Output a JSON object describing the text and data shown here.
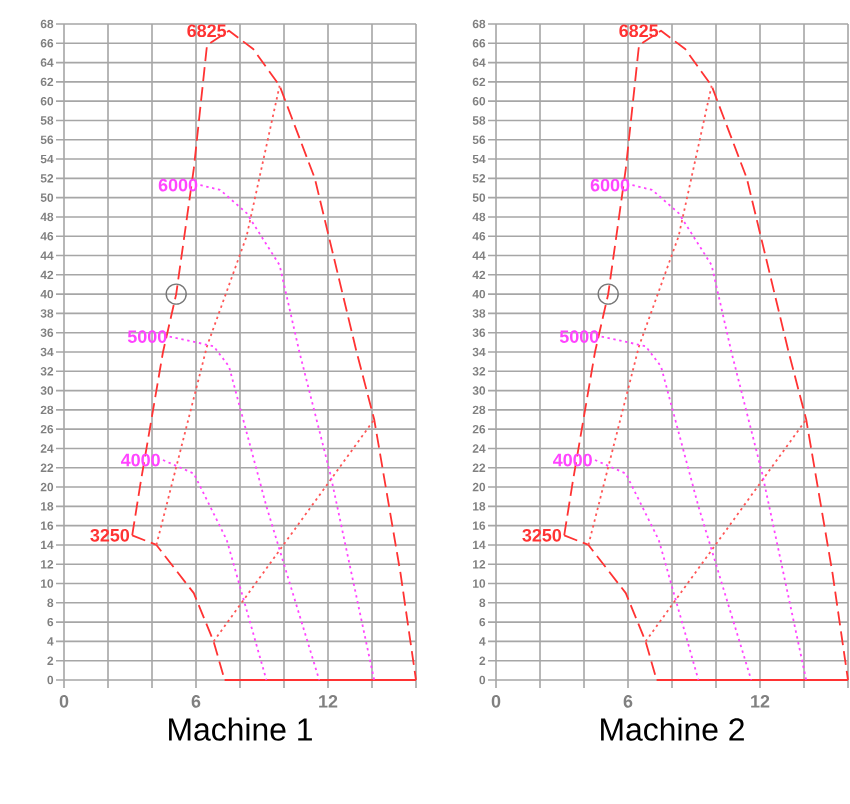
{
  "chart_data": [
    {
      "type": "line",
      "xlabel": "Machine 1",
      "xlim": [
        0,
        16
      ],
      "ylim": [
        0,
        68
      ],
      "xticks": [
        0,
        {
          "value": 2,
          "label": null
        },
        {
          "value": 4,
          "label": null
        },
        6,
        {
          "value": 8,
          "label": null
        },
        {
          "value": 10,
          "label": null
        },
        12,
        {
          "value": 14,
          "label": null
        },
        {
          "value": 16,
          "label": null
        }
      ],
      "yticks": [
        0,
        2,
        4,
        6,
        8,
        10,
        12,
        14,
        16,
        18,
        20,
        22,
        24,
        26,
        28,
        30,
        32,
        34,
        36,
        38,
        40,
        42,
        44,
        46,
        48,
        50,
        52,
        54,
        56,
        58,
        60,
        62,
        64,
        66,
        68
      ],
      "grid": true,
      "series": [
        {
          "name": "6825",
          "color": "#ff3333",
          "line_style": "dashed",
          "x": [
            3.1,
            3.5,
            4.5,
            5.1,
            5.9,
            6.5,
            7.5,
            8.6,
            9.8,
            11.4,
            13.3,
            14.1,
            15.3,
            16
          ],
          "values": [
            15,
            20.7,
            34,
            40,
            53,
            65.8,
            67.3,
            65.4,
            61.6,
            52,
            34,
            27,
            11,
            0
          ]
        },
        {
          "name": "3250",
          "color": "#ff3333",
          "line_style": "dashed",
          "x": [
            3.1,
            4.2,
            5.9,
            6.8,
            7.3
          ],
          "values": [
            15,
            14,
            9,
            4,
            0
          ]
        },
        {
          "color": "#ff3333",
          "line_style": "solid",
          "x": [
            7.3,
            16
          ],
          "values": [
            0,
            0
          ]
        },
        {
          "color": "#ff5555",
          "line_style": "dotted",
          "x": [
            6.8,
            14.1
          ],
          "values": [
            4,
            27
          ]
        },
        {
          "color": "#ff5555",
          "line_style": "dotted",
          "x": [
            4.2,
            6.5,
            8.3,
            9.8
          ],
          "values": [
            14,
            34.6,
            46,
            61.6
          ]
        },
        {
          "name": "6000",
          "color": "#ff44ff",
          "line_style": "dotted",
          "x": [
            6.2,
            7.1,
            8.3,
            9.8,
            10.7,
            12.1,
            14.1
          ],
          "values": [
            51.3,
            50.8,
            48.4,
            43,
            34,
            21.4,
            0
          ]
        },
        {
          "name": "5000",
          "color": "#ff44ff",
          "line_style": "dotted",
          "x": [
            4.8,
            6.8,
            7.5,
            9.2,
            11.6
          ],
          "values": [
            35.6,
            34.6,
            32.5,
            18,
            0
          ]
        },
        {
          "name": "4000",
          "color": "#ff44ff",
          "line_style": "dotted",
          "x": [
            4.5,
            5.9,
            7.4,
            9.2
          ],
          "values": [
            22.8,
            21.4,
            14.5,
            0
          ]
        },
        {
          "type": "scatter",
          "marker": "circle",
          "color": "#777777",
          "x": [
            5.1
          ],
          "values": [
            40
          ]
        }
      ]
    },
    {
      "type": "line",
      "xlabel": "Machine 2",
      "xlim": [
        0,
        16
      ],
      "ylim": [
        0,
        68
      ],
      "xticks": [
        0,
        {
          "value": 2,
          "label": null
        },
        {
          "value": 4,
          "label": null
        },
        6,
        {
          "value": 8,
          "label": null
        },
        {
          "value": 10,
          "label": null
        },
        12,
        {
          "value": 14,
          "label": null
        },
        {
          "value": 16,
          "label": null
        }
      ],
      "yticks": [
        0,
        2,
        4,
        6,
        8,
        10,
        12,
        14,
        16,
        18,
        20,
        22,
        24,
        26,
        28,
        30,
        32,
        34,
        36,
        38,
        40,
        42,
        44,
        46,
        48,
        50,
        52,
        54,
        56,
        58,
        60,
        62,
        64,
        66,
        68
      ],
      "grid": true,
      "series": [
        {
          "name": "6825",
          "color": "#ff3333",
          "line_style": "dashed",
          "x": [
            3.1,
            3.5,
            4.5,
            5.1,
            5.9,
            6.5,
            7.5,
            8.6,
            9.8,
            11.4,
            13.3,
            14.1,
            15.3,
            16
          ],
          "values": [
            15,
            20.7,
            34,
            40,
            53,
            65.8,
            67.3,
            65.4,
            61.6,
            52,
            34,
            27,
            11,
            0
          ]
        },
        {
          "name": "3250",
          "color": "#ff3333",
          "line_style": "dashed",
          "x": [
            3.1,
            4.2,
            5.9,
            6.8,
            7.3
          ],
          "values": [
            15,
            14,
            9,
            4,
            0
          ]
        },
        {
          "color": "#ff3333",
          "line_style": "solid",
          "x": [
            7.3,
            16
          ],
          "values": [
            0,
            0
          ]
        },
        {
          "color": "#ff5555",
          "line_style": "dotted",
          "x": [
            6.8,
            14.1
          ],
          "values": [
            4,
            27
          ]
        },
        {
          "color": "#ff5555",
          "line_style": "dotted",
          "x": [
            4.2,
            6.5,
            8.3,
            9.8
          ],
          "values": [
            14,
            34.6,
            46,
            61.6
          ]
        },
        {
          "name": "6000",
          "color": "#ff44ff",
          "line_style": "dotted",
          "x": [
            6.2,
            7.1,
            8.3,
            9.8,
            10.7,
            12.1,
            14.1
          ],
          "values": [
            51.3,
            50.8,
            48.4,
            43,
            34,
            21.4,
            0
          ]
        },
        {
          "name": "5000",
          "color": "#ff44ff",
          "line_style": "dotted",
          "x": [
            4.8,
            6.8,
            7.5,
            9.2,
            11.6
          ],
          "values": [
            35.6,
            34.6,
            32.5,
            18,
            0
          ]
        },
        {
          "name": "4000",
          "color": "#ff44ff",
          "line_style": "dotted",
          "x": [
            4.5,
            5.9,
            7.4,
            9.2
          ],
          "values": [
            22.8,
            21.4,
            14.5,
            0
          ]
        },
        {
          "type": "scatter",
          "marker": "circle",
          "color": "#777777",
          "x": [
            5.1
          ],
          "values": [
            40
          ]
        }
      ]
    }
  ]
}
